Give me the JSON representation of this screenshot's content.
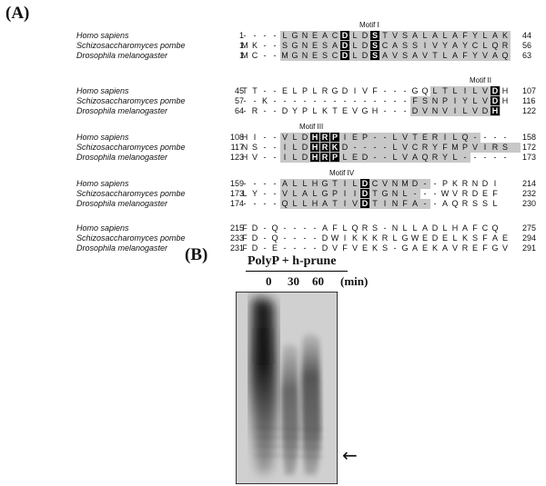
{
  "panel_a": {
    "label": "(A)",
    "species": [
      "Homo sapiens",
      "Schizosaccharomyces pombe",
      "Drosophila melanogaster"
    ],
    "blocks": [
      {
        "rows": [
          {
            "start": "1",
            "seq": "----LGNEACDLDSTVSALALAFYLAK",
            "end": "44"
          },
          {
            "start": "1",
            "seq": "MK--SGNESADLDSCASSIVYAYCLQR",
            "end": "56"
          },
          {
            "start": "1",
            "seq": "MC--MGNESCDLDSAVSAVTLAFYVAQ",
            "end": "63"
          }
        ],
        "boxed_cols": [
          10,
          13
        ],
        "motifs": [
          {
            "label": "Motif I",
            "col": 13
          }
        ]
      },
      {
        "rows": [
          {
            "start": "45",
            "seq": "TT--ELPLRGDIVF---GQLTLILVDH",
            "end": "107"
          },
          {
            "start": "57",
            "seq": "--K--------------FSNPIYLVDH",
            "end": "116"
          },
          {
            "start": "64",
            "seq": "-R--DYPLKTEVGH---DVNVILVDH",
            "end": "122"
          }
        ],
        "boxed_cols": [
          25
        ],
        "motifs": [
          {
            "label": "Motif II",
            "col": 24
          }
        ]
      },
      {
        "rows": [
          {
            "start": "108",
            "seq": "HI--VLDHRPIEP--LVTERILQ----",
            "end": "158"
          },
          {
            "start": "117",
            "seq": "NS--ILDHRKD----LVCRYFMPVIRS",
            "end": "172"
          },
          {
            "start": "123",
            "seq": "HV--ILDHRPLED--LVAQRYL-----",
            "end": "173"
          }
        ],
        "boxed_cols": [
          7,
          8,
          9
        ],
        "motifs": [
          {
            "label": "Motif III",
            "col": 7
          }
        ]
      },
      {
        "rows": [
          {
            "start": "159",
            "seq": "----ALLHGTILDCVNMD--PKRNDI",
            "end": "214"
          },
          {
            "start": "173",
            "seq": "LY--VLALGPIIDTGNL---WVRDEF",
            "end": "232"
          },
          {
            "start": "174",
            "seq": "----QLLHATIVDTINFA--AQRSSL",
            "end": "230"
          }
        ],
        "boxed_cols": [
          12
        ],
        "motifs": [
          {
            "label": "Motif IV",
            "col": 10
          }
        ]
      },
      {
        "rows": [
          {
            "start": "215",
            "seq": "FD-Q----AFLQRS-NLLADLHAFCQ",
            "end": "275"
          },
          {
            "start": "233",
            "seq": "FD-Q----DWIKKKRLGWEDELKSFAE",
            "end": "294"
          },
          {
            "start": "231",
            "seq": "FD-E----DVFVEKS-GAEKAVREFGV",
            "end": "291"
          }
        ],
        "boxed_cols": [],
        "motifs": []
      }
    ]
  },
  "panel_b": {
    "label": "(B)",
    "title": "PolyP + h-prune",
    "timepoints": [
      "0",
      "30",
      "60"
    ],
    "unit": "(min)",
    "arrow": "←"
  },
  "colors": {
    "highlight": "#c8c8c8",
    "motif_box": "#000000",
    "arrow": "#000000"
  }
}
